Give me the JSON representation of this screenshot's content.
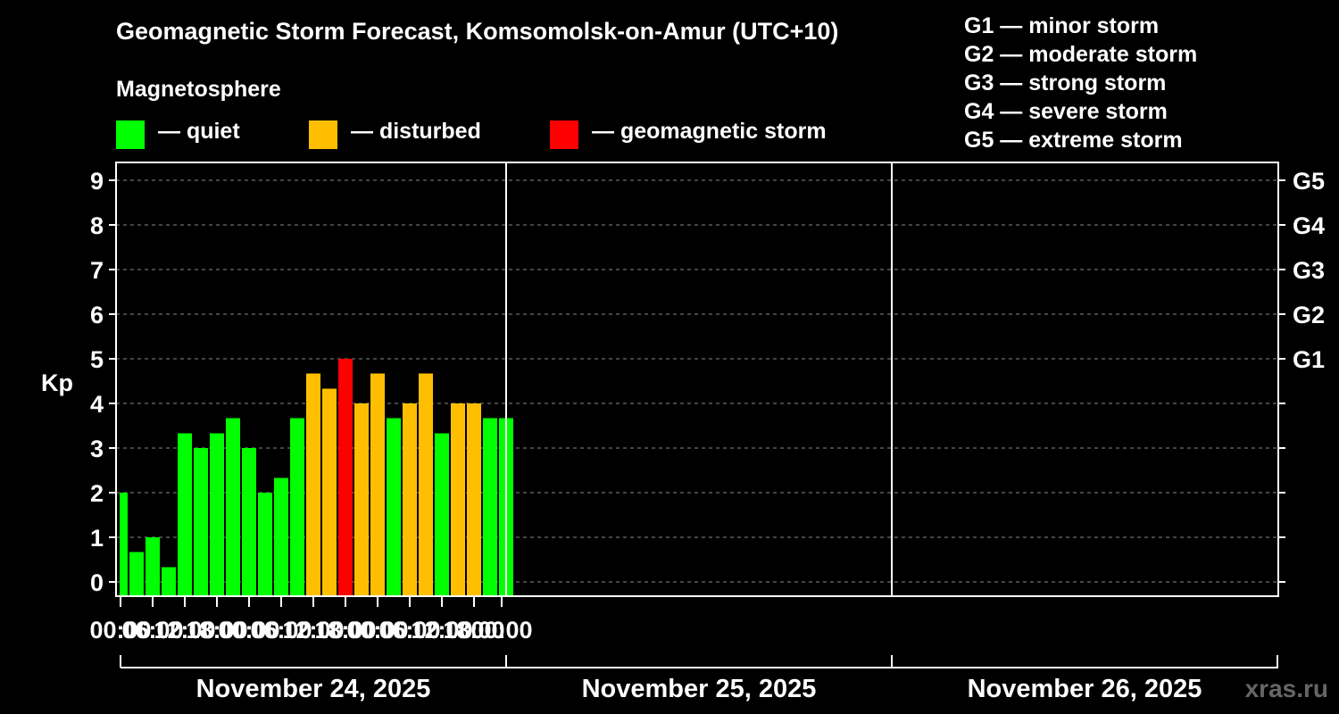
{
  "title": "Geomagnetic Storm Forecast, Komsomolsk-on-Amur (UTC+10)",
  "magnetosphere_label": "Magnetosphere",
  "legend": [
    {
      "label": "— quiet",
      "color": "#00ff00"
    },
    {
      "label": "— disturbed",
      "color": "#ffbf00"
    },
    {
      "label": "— geomagnetic storm",
      "color": "#ff0000"
    }
  ],
  "g_scale": [
    "G1 — minor storm",
    "G2 — moderate storm",
    "G3 — strong storm",
    "G4 — severe storm",
    "G5 — extreme storm"
  ],
  "watermark": "xras.ru",
  "colors": {
    "quiet": "#00ff00",
    "disturbed": "#ffbf00",
    "storm": "#ff0000",
    "grid": "#888888"
  },
  "chart_data": {
    "type": "bar",
    "ylabel": "Kp",
    "ylim": [
      0,
      9
    ],
    "y_ticks": [
      "0",
      "1",
      "2",
      "3",
      "4",
      "5",
      "6",
      "7",
      "8",
      "9"
    ],
    "right_ticks": [
      {
        "value": 5,
        "label": "G1"
      },
      {
        "value": 6,
        "label": "G2"
      },
      {
        "value": 7,
        "label": "G3"
      },
      {
        "value": 8,
        "label": "G4"
      },
      {
        "value": 9,
        "label": "G5"
      }
    ],
    "x_ticks": [
      "00:00",
      "06:00",
      "12:00",
      "18:00",
      "00:00",
      "06:00",
      "12:00",
      "18:00",
      "00:00",
      "06:00",
      "12:00",
      "18:00",
      "00:00"
    ],
    "days": [
      "November 24, 2025",
      "November 25, 2025",
      "November 26, 2025"
    ],
    "grid": true,
    "values": [
      2.0,
      0.67,
      1.0,
      0.33,
      3.33,
      3.0,
      3.33,
      3.67,
      3.0,
      2.0,
      2.33,
      3.67,
      4.67,
      4.33,
      5.0,
      4.0,
      4.67,
      3.67,
      4.0,
      4.67,
      3.33,
      4.0,
      4.0,
      3.67,
      3.67
    ],
    "levels": [
      "quiet",
      "quiet",
      "quiet",
      "quiet",
      "quiet",
      "quiet",
      "quiet",
      "quiet",
      "quiet",
      "quiet",
      "quiet",
      "quiet",
      "disturbed",
      "disturbed",
      "storm",
      "disturbed",
      "disturbed",
      "quiet",
      "disturbed",
      "disturbed",
      "quiet",
      "disturbed",
      "disturbed",
      "quiet",
      "quiet"
    ]
  }
}
